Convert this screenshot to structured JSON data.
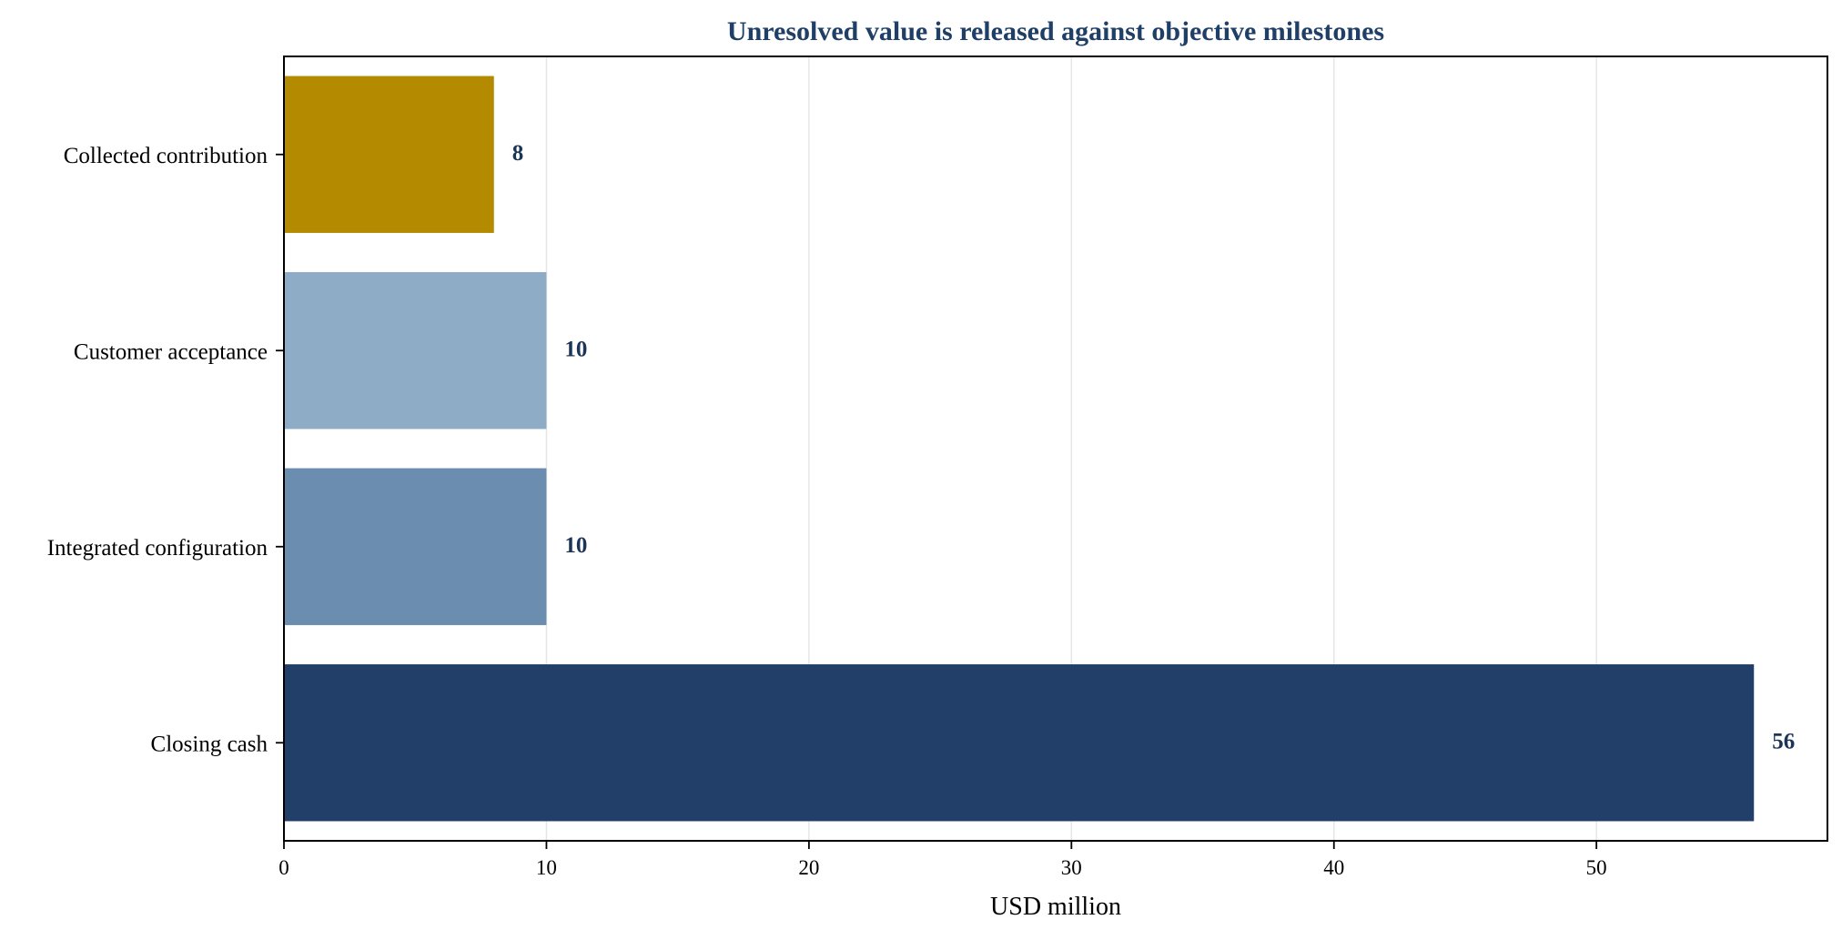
{
  "chart_data": {
    "type": "bar",
    "orientation": "horizontal",
    "title": "Unresolved value is released against objective milestones",
    "xlabel": "USD million",
    "ylabel": "",
    "xlim": [
      0,
      58.8
    ],
    "xticks": [
      0,
      10,
      20,
      30,
      40,
      50
    ],
    "grid": true,
    "categories": [
      "Collected contribution",
      "Customer acceptance",
      "Integrated configuration",
      "Closing cash"
    ],
    "values": [
      8,
      10,
      10,
      56
    ],
    "colors": [
      "#b38a00",
      "#8facc6",
      "#6b8eb0",
      "#213f68"
    ]
  }
}
